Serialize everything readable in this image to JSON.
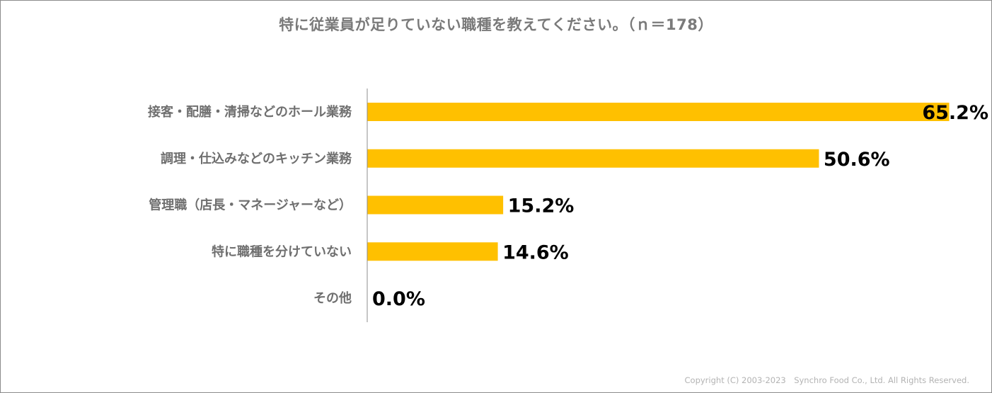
{
  "chart_data": {
    "type": "bar",
    "orientation": "horizontal",
    "title": "特に従業員が足りていない職種を教えてください。（ｎ＝178）",
    "categories": [
      "接客・配膳・清掃などのホール業務",
      "調理・仕込みなどのキッチン業務",
      "管理職（店長・マネージャーなど）",
      "特に職種を分けていない",
      "その他"
    ],
    "values": [
      65.2,
      50.6,
      15.2,
      14.6,
      0.0
    ],
    "value_labels": [
      "65.2%",
      "50.6%",
      "15.2%",
      "14.6%",
      "0.0%"
    ],
    "unit": "%",
    "xlim": [
      0,
      70
    ],
    "grid": false,
    "legend": "none",
    "bar_color": "#FFC000"
  },
  "footer": {
    "copyright": "Copyright (C) 2003-2023　Synchro Food Co., Ltd. All Rights Reserved."
  }
}
